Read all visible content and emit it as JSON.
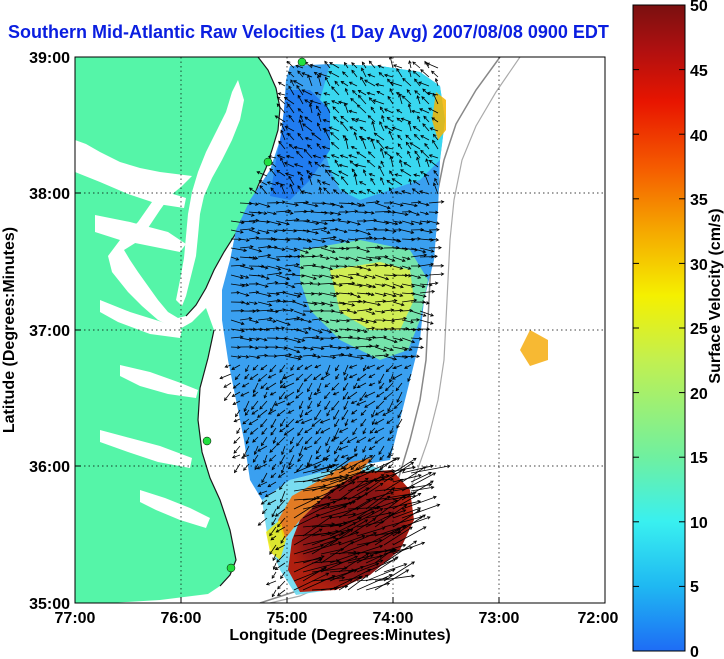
{
  "title": "Southern Mid-Atlantic Raw Velocities (1 Day Avg) 2007/08/08 0900 EDT",
  "map": {
    "x_axis": {
      "label": "Longitude (Degrees:Minutes)",
      "ticks": [
        "77:00",
        "76:00",
        "75:00",
        "74:00",
        "73:00",
        "72:00"
      ]
    },
    "y_axis": {
      "label": "Latitude (Degrees:Minutes)",
      "ticks": [
        "39:00",
        "38:00",
        "37:00",
        "36:00",
        "35:00"
      ]
    },
    "land_color": "#55f5a8",
    "water_color": "#ffffff",
    "grid": "dotted"
  },
  "colorbar": {
    "label": "Surface Velocity (cm/s)",
    "ticks": [
      "50",
      "45",
      "40",
      "35",
      "30",
      "25",
      "20",
      "15",
      "10",
      "5",
      "0"
    ],
    "colors": [
      "#1e6cf5",
      "#1fb8f2",
      "#39f0f0",
      "#6ff0a0",
      "#c2f050",
      "#f5f000",
      "#f5a800",
      "#f55a00",
      "#e81500",
      "#b01010",
      "#7a1010"
    ]
  }
}
